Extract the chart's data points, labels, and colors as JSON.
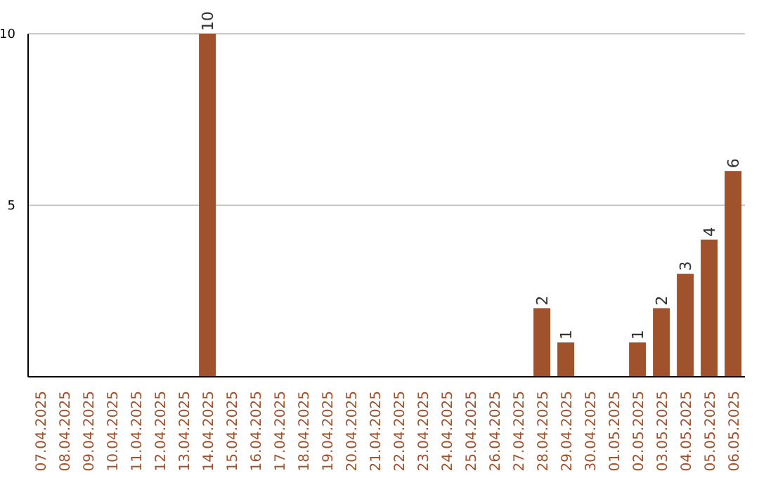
{
  "chart_data": {
    "type": "bar",
    "categories": [
      "07.04.2025",
      "08.04.2025",
      "09.04.2025",
      "10.04.2025",
      "11.04.2025",
      "12.04.2025",
      "13.04.2025",
      "14.04.2025",
      "15.04.2025",
      "16.04.2025",
      "17.04.2025",
      "18.04.2025",
      "19.04.2025",
      "20.04.2025",
      "21.04.2025",
      "22.04.2025",
      "23.04.2025",
      "24.04.2025",
      "25.04.2025",
      "26.04.2025",
      "27.04.2025",
      "28.04.2025",
      "29.04.2025",
      "30.04.2025",
      "01.05.2025",
      "02.05.2025",
      "03.05.2025",
      "04.05.2025",
      "05.05.2025",
      "06.05.2025"
    ],
    "values": [
      0,
      0,
      0,
      0,
      0,
      0,
      0,
      10,
      0,
      0,
      0,
      0,
      0,
      0,
      0,
      0,
      0,
      0,
      0,
      0,
      0,
      2,
      1,
      0,
      0,
      1,
      2,
      3,
      4,
      6
    ],
    "value_labels": [
      null,
      null,
      null,
      null,
      null,
      null,
      null,
      "10",
      null,
      null,
      null,
      null,
      null,
      null,
      null,
      null,
      null,
      null,
      null,
      null,
      null,
      "2",
      "1",
      null,
      null,
      "1",
      "2",
      "3",
      "4",
      "6"
    ],
    "color": "#a0522d",
    "ylim": [
      0,
      10
    ],
    "yticks": [
      5,
      10
    ],
    "grid": "y",
    "legend": false
  }
}
